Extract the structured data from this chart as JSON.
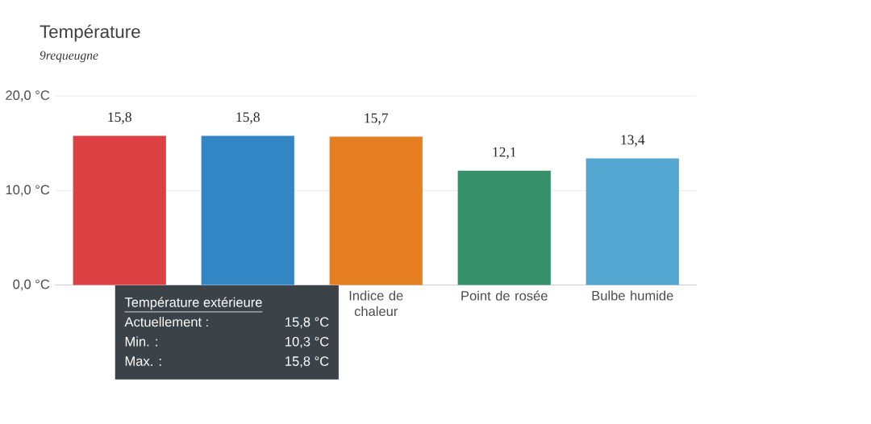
{
  "chart_data": {
    "type": "bar",
    "title": "Température",
    "subtitle": "9requeugne",
    "categories": [
      null,
      null,
      "Indice de chaleur",
      "Point de rosée",
      "Bulbe humide"
    ],
    "values": [
      15.8,
      15.8,
      15.7,
      12.1,
      13.4
    ],
    "colors": [
      "#dc4043",
      "#3186c3",
      "#e67e22",
      "#36916b",
      "#52a6cf"
    ],
    "value_labels": [
      "15,8",
      "15,8",
      "15,7",
      "12,1",
      "13,4"
    ],
    "ylim": [
      0,
      20
    ],
    "yticks": [
      {
        "value": 0,
        "label": "0,0 °C"
      },
      {
        "value": 10,
        "label": "10,0 °C"
      },
      {
        "value": 20,
        "label": "20,0 °C"
      }
    ],
    "grid": "y",
    "annotations": [
      "Température extérieure",
      "Actuellement :",
      "15,8 °C",
      "Min. :",
      "10,3 °C",
      "Max. :",
      "15,8 °C"
    ]
  }
}
